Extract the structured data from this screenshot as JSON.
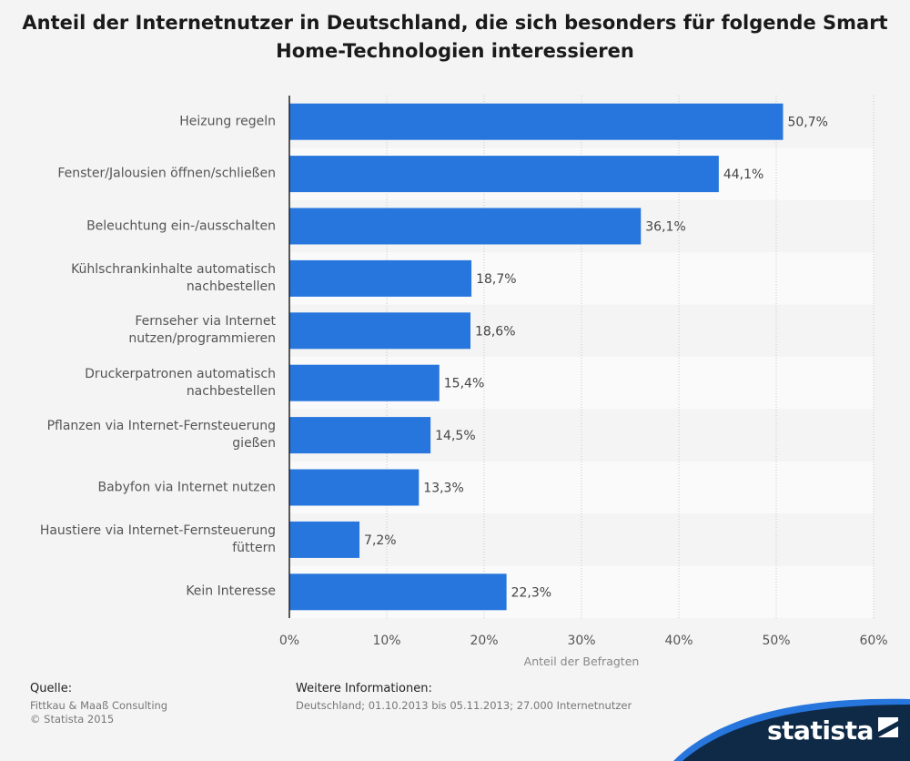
{
  "title": "Anteil der Internetnutzer in Deutschland, die sich besonders für folgende Smart Home-Technologien interessieren",
  "chart_data": {
    "type": "bar",
    "orientation": "horizontal",
    "categories": [
      "Heizung regeln",
      "Fenster/Jalousien öffnen/schließen",
      "Beleuchtung ein-/ausschalten",
      "Kühlschrankinhalte automatisch nachbestellen",
      "Fernseher via Internet nutzen/programmieren",
      "Druckerpatronen automatisch nachbestellen",
      "Pflanzen via Internet-Fernsteuerung gießen",
      "Babyfon via Internet nutzen",
      "Haustiere via Internet-Fernsteuerung füttern",
      "Kein Interesse"
    ],
    "category_lines": [
      [
        "Heizung regeln"
      ],
      [
        "Fenster/Jalousien öffnen/schließen"
      ],
      [
        "Beleuchtung ein-/ausschalten"
      ],
      [
        "Kühlschrankinhalte automatisch",
        "nachbestellen"
      ],
      [
        "Fernseher via Internet",
        "nutzen/programmieren"
      ],
      [
        "Druckerpatronen automatisch",
        "nachbestellen"
      ],
      [
        "Pflanzen via Internet-Fernsteuerung",
        "gießen"
      ],
      [
        "Babyfon via Internet nutzen"
      ],
      [
        "Haustiere via Internet-Fernsteuerung",
        "füttern"
      ],
      [
        "Kein Interesse"
      ]
    ],
    "values": [
      50.7,
      44.1,
      36.1,
      18.7,
      18.6,
      15.4,
      14.5,
      13.3,
      7.2,
      22.3
    ],
    "value_labels": [
      "50,7%",
      "44,1%",
      "36,1%",
      "18,7%",
      "18,6%",
      "15,4%",
      "14,5%",
      "13,3%",
      "7,2%",
      "22,3%"
    ],
    "xlim": [
      0,
      60
    ],
    "xticks": [
      0,
      10,
      20,
      30,
      40,
      50,
      60
    ],
    "xtick_labels": [
      "0%",
      "10%",
      "20%",
      "30%",
      "40%",
      "50%",
      "60%"
    ],
    "xlabel": "Anteil der Befragten",
    "ylabel": "",
    "grid": true,
    "bar_color": "#2776dd"
  },
  "footer": {
    "source_heading": "Quelle:",
    "source_lines": [
      "Fittkau & Maaß Consulting",
      "© Statista 2015"
    ],
    "info_heading": "Weitere Informationen:",
    "info_lines": [
      "Deutschland; 01.10.2013 bis 05.11.2013; 27.000 Internetnutzer"
    ]
  },
  "logo": {
    "text": "statista",
    "color": "#0e2a47",
    "accent": "#2776dd"
  }
}
